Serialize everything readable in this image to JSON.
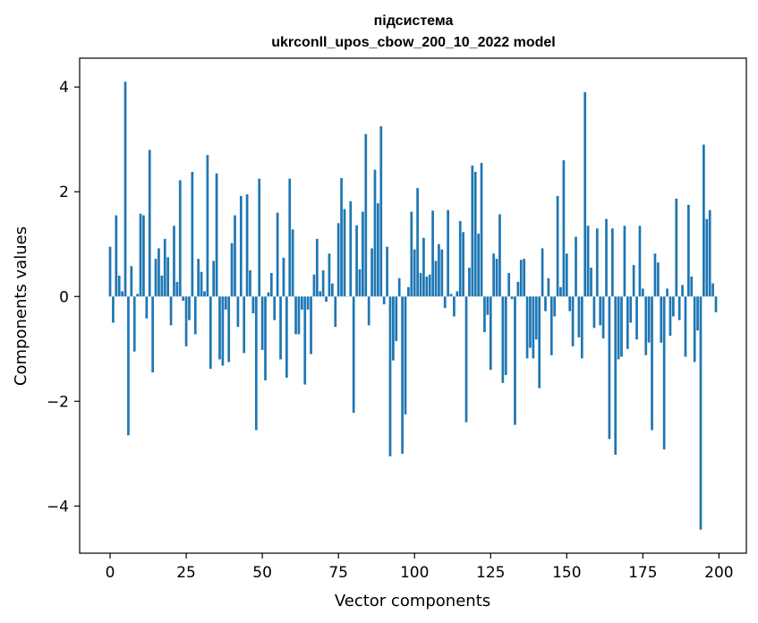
{
  "chart_data": {
    "type": "bar",
    "title_line1": "підсистема",
    "title_line2": "ukrconll_upos_cbow_200_10_2022 model",
    "xlabel": "Vector components",
    "ylabel": "Components values",
    "xlim": [
      -10,
      209
    ],
    "ylim": [
      -4.9,
      4.55
    ],
    "xticks": [
      0,
      25,
      50,
      75,
      100,
      125,
      150,
      175,
      200
    ],
    "xtick_labels": [
      "0",
      "25",
      "50",
      "75",
      "100",
      "125",
      "150",
      "175",
      "200"
    ],
    "yticks": [
      -4,
      -2,
      0,
      2,
      4
    ],
    "ytick_labels": [
      "−4",
      "−2",
      "0",
      "2",
      "4"
    ],
    "bar_color": "#1f77b4",
    "grid": false,
    "x": [
      0,
      1,
      2,
      3,
      4,
      5,
      6,
      7,
      8,
      9,
      10,
      11,
      12,
      13,
      14,
      15,
      16,
      17,
      18,
      19,
      20,
      21,
      22,
      23,
      24,
      25,
      26,
      27,
      28,
      29,
      30,
      31,
      32,
      33,
      34,
      35,
      36,
      37,
      38,
      39,
      40,
      41,
      42,
      43,
      44,
      45,
      46,
      47,
      48,
      49,
      50,
      51,
      52,
      53,
      54,
      55,
      56,
      57,
      58,
      59,
      60,
      61,
      62,
      63,
      64,
      65,
      66,
      67,
      68,
      69,
      70,
      71,
      72,
      73,
      74,
      75,
      76,
      77,
      78,
      79,
      80,
      81,
      82,
      83,
      84,
      85,
      86,
      87,
      88,
      89,
      90,
      91,
      92,
      93,
      94,
      95,
      96,
      97,
      98,
      99,
      100,
      101,
      102,
      103,
      104,
      105,
      106,
      107,
      108,
      109,
      110,
      111,
      112,
      113,
      114,
      115,
      116,
      117,
      118,
      119,
      120,
      121,
      122,
      123,
      124,
      125,
      126,
      127,
      128,
      129,
      130,
      131,
      132,
      133,
      134,
      135,
      136,
      137,
      138,
      139,
      140,
      141,
      142,
      143,
      144,
      145,
      146,
      147,
      148,
      149,
      150,
      151,
      152,
      153,
      154,
      155,
      156,
      157,
      158,
      159,
      160,
      161,
      162,
      163,
      164,
      165,
      166,
      167,
      168,
      169,
      170,
      171,
      172,
      173,
      174,
      175,
      176,
      177,
      178,
      179,
      180,
      181,
      182,
      183,
      184,
      185,
      186,
      187,
      188,
      189,
      190,
      191,
      192,
      193,
      194,
      195,
      196,
      197,
      198,
      199
    ],
    "values": [
      0.95,
      -0.5,
      1.55,
      0.4,
      0.1,
      4.1,
      -2.65,
      0.58,
      -1.05,
      0.05,
      1.58,
      1.55,
      -0.42,
      2.8,
      -1.45,
      0.72,
      0.92,
      0.4,
      1.1,
      0.75,
      -0.55,
      1.35,
      0.28,
      2.22,
      -0.08,
      -0.95,
      -0.45,
      2.38,
      -0.72,
      0.72,
      0.47,
      0.1,
      2.7,
      -1.38,
      0.68,
      2.35,
      -1.2,
      -1.32,
      -0.25,
      -1.25,
      1.02,
      1.55,
      -0.58,
      1.92,
      -1.08,
      1.95,
      0.5,
      -0.32,
      -2.55,
      2.25,
      -1.02,
      -1.6,
      0.08,
      0.45,
      -0.45,
      1.6,
      -1.2,
      0.74,
      -1.55,
      2.25,
      1.28,
      -0.72,
      -0.72,
      -0.25,
      -1.68,
      -0.25,
      -1.1,
      0.42,
      1.1,
      0.1,
      0.5,
      -0.1,
      0.82,
      0.25,
      -0.58,
      1.4,
      2.26,
      1.67,
      0.0,
      1.82,
      -2.22,
      1.36,
      0.52,
      1.62,
      3.1,
      -0.55,
      0.92,
      2.42,
      1.78,
      3.25,
      -0.15,
      0.95,
      -3.05,
      -1.22,
      -0.85,
      0.35,
      -3.0,
      -2.25,
      0.18,
      1.62,
      0.9,
      2.07,
      0.45,
      1.12,
      0.38,
      0.42,
      1.64,
      0.68,
      1.0,
      0.9,
      -0.22,
      1.65,
      0.05,
      -0.38,
      0.1,
      1.44,
      1.23,
      -2.4,
      0.55,
      2.5,
      2.38,
      1.2,
      2.55,
      -0.68,
      -0.35,
      -1.4,
      0.82,
      0.72,
      1.57,
      -1.65,
      -1.5,
      0.45,
      -0.05,
      -2.45,
      0.28,
      0.7,
      0.72,
      -1.18,
      -0.98,
      -1.18,
      -0.82,
      -1.75,
      0.92,
      -0.28,
      0.35,
      -1.12,
      -0.38,
      1.92,
      0.18,
      2.6,
      0.82,
      -0.28,
      -0.95,
      1.14,
      -0.78,
      -1.18,
      3.9,
      1.35,
      0.55,
      -0.6,
      1.3,
      -0.55,
      -0.8,
      1.48,
      -2.72,
      1.3,
      -3.02,
      -1.2,
      -1.15,
      1.35,
      -1.0,
      -0.5,
      0.6,
      -0.82,
      1.35,
      0.15,
      -1.12,
      -0.88,
      -2.55,
      0.82,
      0.65,
      -0.88,
      -2.92,
      0.15,
      -0.75,
      -0.38,
      1.87,
      -0.45,
      0.22,
      -1.15,
      1.75,
      0.38,
      -1.25,
      -0.65,
      -4.45,
      2.9,
      1.48,
      1.65,
      0.25,
      -0.3
    ]
  }
}
